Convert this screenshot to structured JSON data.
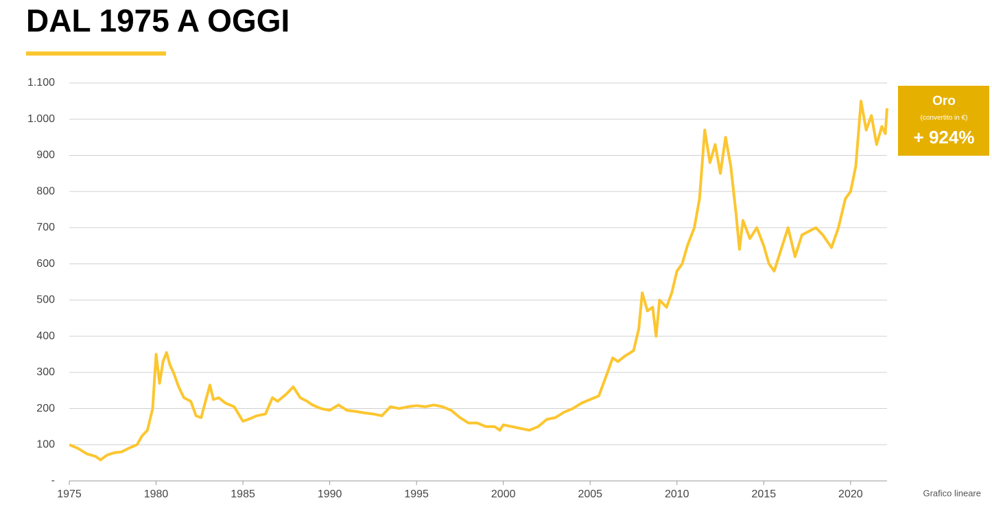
{
  "chart_data": {
    "type": "line",
    "title": "DAL 1975 A OGGI",
    "annotation": {
      "title": "Oro",
      "subtitle": "(convertito in €)",
      "value": "+ 924%"
    },
    "footer": "Grafico lineare",
    "xlim": [
      1975,
      2022.1
    ],
    "ylim": [
      0,
      1100
    ],
    "xticks": [
      1975,
      1980,
      1985,
      1990,
      1995,
      2000,
      2005,
      2010,
      2015,
      2020
    ],
    "yticks": [
      {
        "value": 0,
        "label": "-"
      },
      100,
      200,
      300,
      400,
      500,
      600,
      700,
      800,
      900,
      {
        "value": 1000,
        "label": "1.000"
      },
      {
        "value": 1100,
        "label": "1.100"
      }
    ],
    "grid": true,
    "series": [
      {
        "name": "Oro",
        "color": "#fcc630",
        "x": [
          1975.0,
          1975.5,
          1976.0,
          1976.5,
          1976.8,
          1977.2,
          1977.6,
          1978.0,
          1978.5,
          1978.9,
          1979.2,
          1979.5,
          1979.8,
          1980.0,
          1980.2,
          1980.4,
          1980.6,
          1980.8,
          1981.0,
          1981.3,
          1981.6,
          1982.0,
          1982.3,
          1982.6,
          1982.9,
          1983.1,
          1983.3,
          1983.6,
          1984.0,
          1984.5,
          1985.0,
          1985.3,
          1985.8,
          1986.3,
          1986.7,
          1987.0,
          1987.5,
          1987.9,
          1988.3,
          1988.7,
          1989.0,
          1989.5,
          1990.0,
          1990.5,
          1991.0,
          1991.5,
          1992.0,
          1992.5,
          1993.0,
          1993.5,
          1994.0,
          1994.5,
          1995.0,
          1995.5,
          1996.0,
          1996.5,
          1997.0,
          1997.5,
          1998.0,
          1998.5,
          1999.0,
          1999.5,
          1999.8,
          2000.0,
          2000.5,
          2001.0,
          2001.5,
          2002.0,
          2002.5,
          2003.0,
          2003.5,
          2004.0,
          2004.5,
          2005.0,
          2005.5,
          2006.0,
          2006.3,
          2006.6,
          2007.0,
          2007.5,
          2007.8,
          2008.0,
          2008.3,
          2008.6,
          2008.8,
          2009.0,
          2009.4,
          2009.7,
          2010.0,
          2010.3,
          2010.6,
          2011.0,
          2011.3,
          2011.6,
          2011.9,
          2012.2,
          2012.5,
          2012.8,
          2013.1,
          2013.4,
          2013.6,
          2013.8,
          2014.2,
          2014.6,
          2015.0,
          2015.3,
          2015.6,
          2016.0,
          2016.4,
          2016.8,
          2017.2,
          2017.6,
          2018.0,
          2018.4,
          2018.9,
          2019.3,
          2019.7,
          2020.0,
          2020.3,
          2020.6,
          2020.9,
          2021.2,
          2021.5,
          2021.8,
          2022.0,
          2022.1
        ],
        "values": [
          100,
          90,
          75,
          68,
          58,
          72,
          78,
          80,
          92,
          100,
          125,
          140,
          200,
          350,
          270,
          330,
          355,
          320,
          300,
          260,
          230,
          220,
          180,
          175,
          230,
          265,
          225,
          230,
          215,
          205,
          165,
          170,
          180,
          185,
          230,
          220,
          240,
          260,
          230,
          220,
          210,
          200,
          195,
          210,
          195,
          192,
          188,
          185,
          180,
          205,
          200,
          205,
          208,
          205,
          210,
          205,
          195,
          175,
          160,
          160,
          150,
          150,
          140,
          155,
          150,
          145,
          140,
          150,
          170,
          175,
          190,
          200,
          215,
          225,
          235,
          300,
          340,
          330,
          345,
          360,
          420,
          520,
          470,
          480,
          400,
          500,
          480,
          520,
          580,
          600,
          650,
          700,
          780,
          970,
          880,
          930,
          850,
          950,
          870,
          740,
          640,
          720,
          670,
          700,
          650,
          600,
          580,
          640,
          700,
          620,
          680,
          690,
          700,
          680,
          645,
          700,
          780,
          800,
          870,
          1050,
          970,
          1010,
          930,
          980,
          960,
          1030
        ]
      }
    ]
  }
}
